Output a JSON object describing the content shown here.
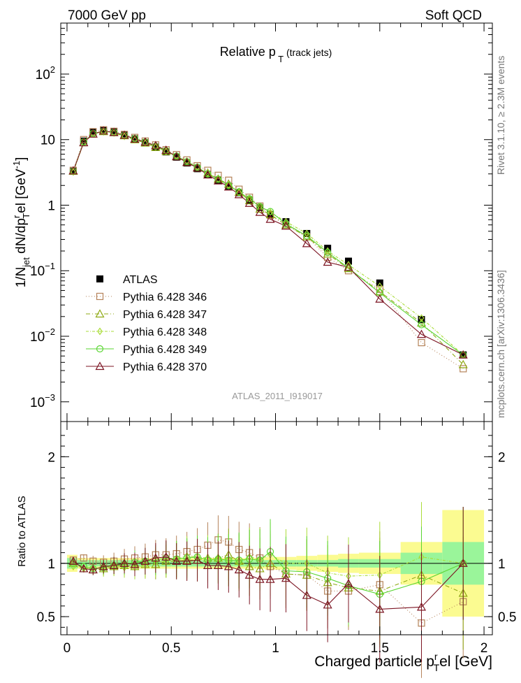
{
  "header": {
    "left": "7000 GeV pp",
    "right": "Soft QCD"
  },
  "side": {
    "top": "Rivet 3.1.10, ≥ 2.3M events",
    "bottom": "mcplots.cern.ch [arXiv:1306.3436]"
  },
  "chart_data": [
    {
      "type": "line",
      "title": "Relative p T (track jets)",
      "ylabel": "1/N jet dN/dp T rel [GeV^-1]",
      "yscale": "log",
      "ylim": [
        0.0005,
        600
      ],
      "xlim": [
        -0.03,
        2.04
      ],
      "yticks": [
        {
          "value": 0.001,
          "base": "10",
          "exp": "−3"
        },
        {
          "value": 0.01,
          "base": "10",
          "exp": "−2"
        },
        {
          "value": 0.1,
          "base": "10",
          "exp": "−1"
        },
        {
          "value": 1,
          "base": "1",
          "exp": ""
        },
        {
          "value": 10,
          "base": "10",
          "exp": ""
        },
        {
          "value": 100,
          "base": "10",
          "exp": "2"
        }
      ],
      "watermark": "ATLAS_2011_I919017",
      "legend_position": "lower-left",
      "x": [
        0.03,
        0.08,
        0.125,
        0.175,
        0.225,
        0.275,
        0.325,
        0.375,
        0.425,
        0.475,
        0.525,
        0.575,
        0.625,
        0.675,
        0.725,
        0.775,
        0.825,
        0.875,
        0.925,
        0.975,
        1.05,
        1.15,
        1.25,
        1.35,
        1.5,
        1.7,
        1.9
      ],
      "series": [
        {
          "name": "ATLAS",
          "color": "#000000",
          "marker": "filled-square",
          "values": [
            3.3,
            9.5,
            13.0,
            14.0,
            13.2,
            11.7,
            10.3,
            9.0,
            7.7,
            6.5,
            5.4,
            4.4,
            3.6,
            2.95,
            2.4,
            1.95,
            1.55,
            1.2,
            0.92,
            0.72,
            0.56,
            0.37,
            0.22,
            0.14,
            0.065,
            0.018,
            0.0052
          ]
        },
        {
          "name": "Pythia 6.428 346",
          "color": "#b5835a",
          "marker": "open-square",
          "values": [
            3.4,
            10.0,
            13.2,
            14.1,
            13.4,
            12.0,
            10.8,
            9.5,
            8.3,
            7.0,
            5.9,
            4.9,
            4.0,
            3.4,
            2.85,
            2.4,
            1.75,
            1.32,
            0.97,
            0.7,
            0.5,
            0.33,
            0.16,
            0.1,
            0.052,
            0.008,
            0.0032
          ]
        },
        {
          "name": "Pythia 6.428 347",
          "color": "#8faa14",
          "marker": "open-triangle",
          "values": [
            3.3,
            9.0,
            12.2,
            13.3,
            12.8,
            11.5,
            10.0,
            8.9,
            7.6,
            6.6,
            5.5,
            4.5,
            3.7,
            3.1,
            2.5,
            2.1,
            1.58,
            1.17,
            0.87,
            0.72,
            0.5,
            0.33,
            0.18,
            0.108,
            0.048,
            0.016,
            0.0037
          ]
        },
        {
          "name": "Pythia 6.428 348",
          "color": "#aadc38",
          "marker": "open-diamond",
          "values": [
            3.2,
            9.0,
            12.3,
            13.1,
            12.6,
            11.2,
            9.9,
            8.8,
            7.8,
            6.6,
            5.6,
            4.7,
            3.8,
            3.1,
            2.5,
            2.0,
            1.55,
            1.27,
            0.96,
            0.78,
            0.56,
            0.37,
            0.2,
            0.123,
            0.058,
            0.019,
            0.0052
          ]
        },
        {
          "name": "Pythia 6.428 349",
          "color": "#5ad632",
          "marker": "open-circle",
          "values": [
            3.3,
            9.2,
            12.4,
            13.4,
            12.9,
            11.6,
            10.4,
            9.2,
            7.9,
            6.8,
            5.6,
            4.6,
            3.8,
            3.0,
            2.5,
            2.0,
            1.6,
            1.25,
            0.95,
            0.8,
            0.52,
            0.34,
            0.19,
            0.11,
            0.046,
            0.015,
            0.0052
          ]
        },
        {
          "name": "Pythia 6.428 370",
          "color": "#7c1523",
          "marker": "open-triangle",
          "values": [
            3.35,
            9.0,
            12.2,
            13.6,
            12.9,
            11.7,
            10.2,
            9.2,
            8.1,
            6.9,
            5.5,
            4.5,
            3.7,
            2.9,
            2.35,
            1.9,
            1.45,
            1.07,
            0.78,
            0.61,
            0.48,
            0.26,
            0.135,
            0.113,
            0.037,
            0.0107,
            0.0052
          ]
        }
      ]
    },
    {
      "type": "line",
      "ylabel": "Ratio to ATLAS",
      "xlabel": "Charged particle p T rel [GeV]",
      "ylim": [
        0.33,
        2.33
      ],
      "xlim": [
        -0.03,
        2.04
      ],
      "xticks": [
        "0",
        "0.5",
        "1",
        "1.5",
        "2"
      ],
      "yticks": [
        "0.5",
        "1",
        "2"
      ],
      "x": [
        0.03,
        0.08,
        0.125,
        0.175,
        0.225,
        0.275,
        0.325,
        0.375,
        0.425,
        0.475,
        0.525,
        0.575,
        0.625,
        0.675,
        0.725,
        0.775,
        0.825,
        0.875,
        0.925,
        0.975,
        1.05,
        1.15,
        1.25,
        1.35,
        1.5,
        1.7,
        1.9
      ],
      "bin_edges": [
        0.0,
        0.05,
        0.1,
        0.15,
        0.2,
        0.25,
        0.3,
        0.35,
        0.4,
        0.45,
        0.5,
        0.55,
        0.6,
        0.65,
        0.7,
        0.75,
        0.8,
        0.85,
        0.9,
        0.95,
        1.0,
        1.1,
        1.2,
        1.3,
        1.4,
        1.6,
        1.8,
        2.0
      ],
      "band_inner_halfwidth": [
        0.05,
        0.03,
        0.03,
        0.03,
        0.03,
        0.03,
        0.03,
        0.03,
        0.03,
        0.03,
        0.03,
        0.03,
        0.03,
        0.03,
        0.03,
        0.03,
        0.03,
        0.03,
        0.03,
        0.03,
        0.03,
        0.03,
        0.03,
        0.04,
        0.04,
        0.1,
        0.2
      ],
      "band_outer_halfwidth": [
        0.08,
        0.05,
        0.05,
        0.05,
        0.05,
        0.05,
        0.05,
        0.05,
        0.05,
        0.05,
        0.05,
        0.05,
        0.05,
        0.05,
        0.05,
        0.05,
        0.05,
        0.05,
        0.05,
        0.06,
        0.06,
        0.07,
        0.08,
        0.09,
        0.1,
        0.2,
        0.5
      ],
      "band_inner_color": "#9af59a",
      "band_outer_color": "#fbfb91",
      "series": [
        {
          "name": "Pythia 6.428 346",
          "color": "#b5835a",
          "marker": "open-square",
          "dash": "1,3",
          "values": [
            1.03,
            1.05,
            1.02,
            1.01,
            1.02,
            1.04,
            1.05,
            1.06,
            1.08,
            1.08,
            1.09,
            1.11,
            1.13,
            1.17,
            1.22,
            1.2,
            1.13,
            1.1,
            1.05,
            0.97,
            0.9,
            0.89,
            0.74,
            0.74,
            0.8,
            0.44,
            0.64
          ]
        },
        {
          "name": "Pythia 6.428 347",
          "color": "#8faa14",
          "marker": "open-triangle",
          "dash": "6,3,1,3",
          "values": [
            1.0,
            0.95,
            0.94,
            0.95,
            0.97,
            0.98,
            0.97,
            0.99,
            0.99,
            1.02,
            1.02,
            1.03,
            1.03,
            1.05,
            1.05,
            1.08,
            1.02,
            0.97,
            0.95,
            1.0,
            0.9,
            0.89,
            0.82,
            0.77,
            0.74,
            0.89,
            0.72
          ]
        },
        {
          "name": "Pythia 6.428 348",
          "color": "#aadc38",
          "marker": "open-diamond",
          "dash": "4,2,1,2",
          "values": [
            0.97,
            0.95,
            0.95,
            0.94,
            0.96,
            0.96,
            0.96,
            0.98,
            1.01,
            1.02,
            1.04,
            1.07,
            1.06,
            1.05,
            1.04,
            1.03,
            1.0,
            1.06,
            1.04,
            1.08,
            1.0,
            1.0,
            0.91,
            0.88,
            0.89,
            1.06,
            1.0
          ]
        },
        {
          "name": "Pythia 6.428 349",
          "color": "#5ad632",
          "marker": "open-circle",
          "dash": "",
          "values": [
            1.0,
            0.97,
            0.95,
            0.96,
            0.98,
            0.99,
            1.01,
            1.02,
            1.03,
            1.05,
            1.04,
            1.05,
            1.06,
            1.03,
            1.04,
            1.03,
            1.03,
            1.04,
            1.03,
            1.11,
            0.93,
            0.92,
            0.86,
            0.79,
            0.71,
            0.83,
            1.0
          ]
        },
        {
          "name": "Pythia 6.428 370",
          "color": "#7c1523",
          "marker": "open-triangle",
          "dash": "",
          "values": [
            1.02,
            0.95,
            0.94,
            0.97,
            0.98,
            1.0,
            0.99,
            1.02,
            1.05,
            1.06,
            1.02,
            1.02,
            1.03,
            0.98,
            0.98,
            0.97,
            0.94,
            0.89,
            0.85,
            0.85,
            0.86,
            0.7,
            0.61,
            0.81,
            0.57,
            0.59,
            1.0
          ]
        }
      ]
    }
  ]
}
